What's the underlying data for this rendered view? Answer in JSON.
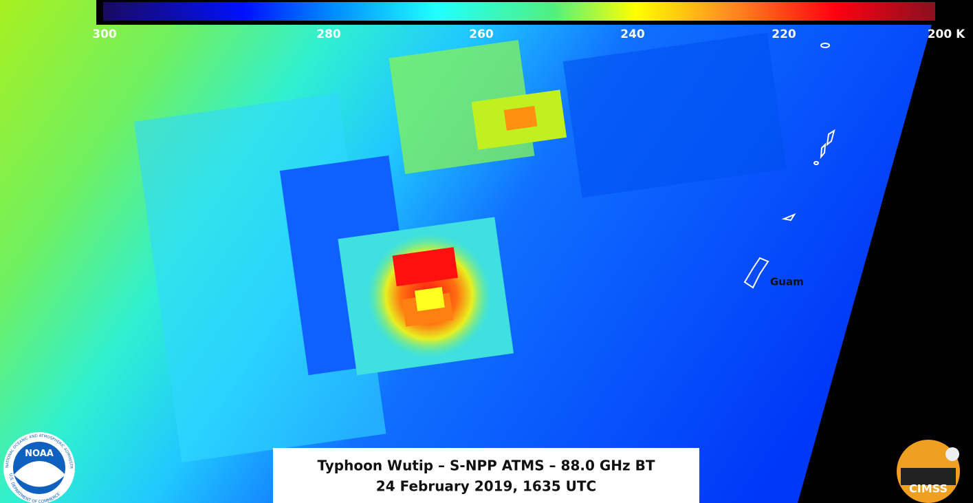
{
  "colorbar": {
    "clim": [
      300,
      200
    ],
    "ticks": [
      300,
      280,
      260,
      240,
      220,
      {
        "value": 200,
        "label": "200 K"
      }
    ]
  },
  "title": {
    "line1": "Typhoon Wutip – S-NPP ATMS – 88.0 GHz BT",
    "line2": "24 February 2019, 1635 UTC"
  },
  "labels": {
    "guam": "Guam"
  },
  "logos": {
    "noaa": "NOAA",
    "noaa_ring_top": "NATIONAL OCEANIC AND ATMOSPHERIC ADMINISTRATION",
    "noaa_ring_bottom": "U.S. DEPARTMENT OF COMMERCE",
    "cimss": "CIMSS"
  }
}
